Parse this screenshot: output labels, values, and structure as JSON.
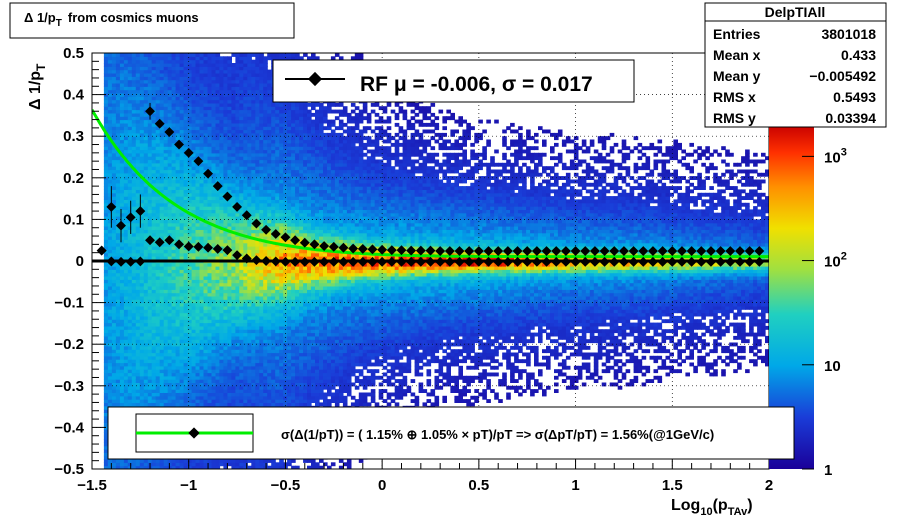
{
  "title_main": "Δ 1/p",
  "title_sub": "T",
  "title_rest": "from cosmics muons",
  "stats": {
    "name": "DelpTIAll",
    "rows": [
      {
        "label": "Entries",
        "value": "3801018"
      },
      {
        "label": "Mean x",
        "value": "0.433"
      },
      {
        "label": "Mean y",
        "value": "−0.005492"
      },
      {
        "label": "RMS x",
        "value": "0.5493"
      },
      {
        "label": "RMS y",
        "value": "0.03394"
      }
    ]
  },
  "legend_top": {
    "text": "RF μ = -0.006, σ =   0.017"
  },
  "legend_bottom": {
    "text": "σ(Δ(1/pT)) = ( 1.15% ⊕  1.05% × pT)/pT => σ(ΔpT/pT) =  1.56%(@1GeV/c)"
  },
  "colors": {
    "fit_line": "#00ee00",
    "marker": "#000000",
    "frame": "#000000"
  },
  "chart_data": {
    "type": "heatmap",
    "xlabel_main": "Log",
    "xlabel_sub1": "10",
    "xlabel_mid": "(p",
    "xlabel_sub2": "TAv",
    "xlabel_end": ")",
    "ylabel_main": "Δ 1/p",
    "ylabel_sub": "T",
    "xlim": [
      -1.5,
      2.0
    ],
    "ylim": [
      -0.5,
      0.5
    ],
    "x_ticks": [
      -1.5,
      -1,
      -0.5,
      0,
      0.5,
      1,
      1.5,
      2
    ],
    "x_tick_labels": [
      "−1.5",
      "−1",
      "−0.5",
      "0",
      "0.5",
      "1",
      "1.5",
      "2"
    ],
    "y_ticks": [
      -0.5,
      -0.4,
      -0.3,
      -0.2,
      -0.1,
      0,
      0.1,
      0.2,
      0.3,
      0.4,
      0.5
    ],
    "y_tick_labels": [
      "−0.5",
      "−0.4",
      "−0.3",
      "−0.2",
      "−0.1",
      "0",
      "0.1",
      "0.2",
      "0.3",
      "0.4",
      "0.5"
    ],
    "grid": true,
    "z_scale": "log",
    "z_range": [
      1,
      2000
    ],
    "z_tick_labels": [
      {
        "value": 1,
        "base": "1",
        "exp": ""
      },
      {
        "value": 10,
        "base": "10",
        "exp": ""
      },
      {
        "value": 100,
        "base": "10",
        "exp": "2"
      },
      {
        "value": 1000,
        "base": "10",
        "exp": "3"
      }
    ],
    "sigma_points": {
      "x": [
        -1.45,
        -1.4,
        -1.35,
        -1.3,
        -1.25,
        -1.2,
        -1.15,
        -1.1,
        -1.05,
        -1.0,
        -0.95,
        -0.9,
        -0.85,
        -0.8,
        -0.75,
        -0.7,
        -0.65,
        -0.6,
        -0.55,
        -0.5,
        -0.45,
        -0.4,
        -0.35,
        -0.3,
        -0.25,
        -0.2,
        -0.15,
        -0.1,
        -0.05,
        0.0,
        0.05,
        0.1,
        0.15,
        0.2,
        0.25,
        0.3,
        0.35,
        0.4,
        0.45,
        0.5,
        0.55,
        0.6,
        0.65,
        0.7,
        0.75,
        0.8,
        0.85,
        0.9,
        0.95,
        1.0,
        1.05,
        1.1,
        1.15,
        1.2,
        1.25,
        1.3,
        1.35,
        1.4,
        1.45,
        1.5,
        1.55,
        1.6,
        1.65,
        1.7,
        1.75,
        1.8,
        1.85,
        1.9,
        1.95
      ],
      "y": [
        0.025,
        0.13,
        0.085,
        0.105,
        0.12,
        0.36,
        0.33,
        0.31,
        0.28,
        0.26,
        0.24,
        0.21,
        0.18,
        0.155,
        0.13,
        0.11,
        0.09,
        0.075,
        0.065,
        0.057,
        0.05,
        0.044,
        0.04,
        0.036,
        0.034,
        0.032,
        0.03,
        0.029,
        0.028,
        0.027,
        0.026,
        0.026,
        0.025,
        0.025,
        0.025,
        0.024,
        0.024,
        0.024,
        0.024,
        0.024,
        0.024,
        0.024,
        0.024,
        0.024,
        0.024,
        0.024,
        0.024,
        0.024,
        0.024,
        0.024,
        0.024,
        0.024,
        0.024,
        0.024,
        0.024,
        0.024,
        0.024,
        0.024,
        0.024,
        0.024,
        0.024,
        0.024,
        0.024,
        0.024,
        0.024,
        0.024,
        0.024,
        0.024,
        0.024
      ],
      "yerr": [
        0.01,
        0.05,
        0.04,
        0.04,
        0.04,
        0.02,
        0.01,
        0.01,
        0.01,
        0.005,
        0.005,
        0.005,
        0.004,
        0.003,
        0.003,
        0.002,
        0.002,
        0.002,
        0.001,
        0.001,
        0.001,
        0.001,
        0.001,
        0.001,
        0.001,
        0.001,
        0.001,
        0.001,
        0.001,
        0.001,
        0.001,
        0.001,
        0.001,
        0.001,
        0.001,
        0.001,
        0.001,
        0.001,
        0.001,
        0.001,
        0.001,
        0.001,
        0.001,
        0.001,
        0.001,
        0.001,
        0.001,
        0.001,
        0.001,
        0.001,
        0.001,
        0.001,
        0.001,
        0.001,
        0.001,
        0.001,
        0.001,
        0.001,
        0.001,
        0.001,
        0.001,
        0.001,
        0.001,
        0.001,
        0.001,
        0.001,
        0.001,
        0.001,
        0.001
      ]
    },
    "mean_points": {
      "x": [
        -1.45,
        -1.4,
        -1.35,
        -1.3,
        -1.25,
        -1.2,
        -1.15,
        -1.1,
        -1.05,
        -1.0,
        -0.95,
        -0.9,
        -0.85,
        -0.8,
        -0.75,
        -0.7,
        -0.65,
        -0.6,
        -0.55,
        -0.5,
        -0.45,
        -0.4,
        -0.35,
        -0.3,
        -0.25,
        -0.2,
        -0.15,
        -0.1,
        -0.05,
        0.0,
        0.05,
        0.1,
        0.15,
        0.2,
        0.25,
        0.3,
        0.35,
        0.4,
        0.45,
        0.5,
        0.55,
        0.6,
        0.65,
        0.7,
        0.75,
        0.8,
        0.85,
        0.9,
        0.95,
        1.0,
        1.05,
        1.1,
        1.15,
        1.2,
        1.25,
        1.3,
        1.35,
        1.4,
        1.45,
        1.5,
        1.55,
        1.6,
        1.65,
        1.7,
        1.75,
        1.8,
        1.85,
        1.9,
        1.95
      ],
      "y": [
        0.025,
        -0.001,
        -0.002,
        -0.002,
        -0.001,
        0.05,
        0.045,
        0.05,
        0.04,
        0.035,
        0.034,
        0.032,
        0.029,
        0.026,
        0.014,
        0.006,
        0.002,
        0.0,
        -0.001,
        -0.002,
        -0.002,
        -0.002,
        -0.002,
        -0.002,
        -0.002,
        -0.002,
        -0.002,
        -0.002,
        -0.002,
        -0.002,
        -0.002,
        -0.002,
        -0.002,
        -0.002,
        -0.002,
        -0.002,
        -0.002,
        -0.002,
        -0.002,
        -0.002,
        -0.002,
        -0.002,
        -0.002,
        -0.002,
        -0.002,
        -0.002,
        -0.002,
        -0.002,
        -0.002,
        -0.002,
        -0.002,
        -0.002,
        -0.002,
        -0.002,
        -0.002,
        -0.002,
        -0.002,
        -0.002,
        -0.002,
        -0.002,
        -0.002,
        -0.002,
        -0.002,
        -0.002,
        -0.002,
        -0.002,
        -0.002,
        -0.002,
        -0.002
      ]
    },
    "fit_curve": {
      "a": 0.0115,
      "b": 0.0105,
      "series_name": "σ(Δ(1/pT)) = ( 1.15% ⊕  1.05% × pT)/pT"
    },
    "zero_line": {
      "y": 0
    }
  }
}
